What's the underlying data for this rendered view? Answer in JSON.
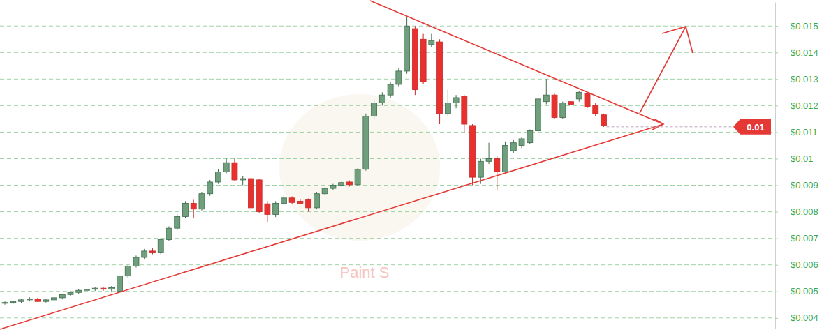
{
  "chart_data": {
    "type": "candlestick",
    "x": [
      1,
      2,
      3,
      4,
      5,
      6,
      7,
      8,
      9,
      10,
      11,
      12,
      13,
      14,
      15,
      16,
      17,
      18,
      19,
      20,
      21,
      22,
      23,
      24,
      25,
      26,
      27,
      28,
      29,
      30,
      31,
      32,
      33,
      34,
      35,
      36,
      37,
      38,
      39,
      40,
      41,
      42,
      43,
      44,
      45,
      46,
      47,
      48,
      49,
      50,
      51,
      52,
      53,
      54,
      55,
      56,
      57,
      58,
      59,
      60,
      61,
      62,
      63,
      64,
      65,
      66,
      67,
      68,
      69,
      70,
      71,
      72,
      73,
      74
    ],
    "open": [
      0.00455,
      0.00458,
      0.00462,
      0.00468,
      0.00472,
      0.00462,
      0.00468,
      0.00476,
      0.00488,
      0.00496,
      0.00504,
      0.00508,
      0.00512,
      0.00508,
      0.005,
      0.00558,
      0.00595,
      0.00628,
      0.00652,
      0.00645,
      0.00695,
      0.00738,
      0.00782,
      0.00832,
      0.0081,
      0.00868,
      0.00912,
      0.0095,
      0.00985,
      0.0092,
      0.00925,
      0.0092,
      0.0083,
      0.0079,
      0.00832,
      0.00852,
      0.0084,
      0.00845,
      0.00815,
      0.00868,
      0.00888,
      0.009,
      0.00912,
      0.00902,
      0.0096,
      0.0116,
      0.0121,
      0.0124,
      0.0128,
      0.0133,
      0.0149,
      0.0145,
      0.0143,
      0.0144,
      0.0117,
      0.0121,
      0.01235,
      0.01125,
      0.0093,
      0.0099,
      0.01,
      0.0095,
      0.0103,
      0.0105,
      0.0106,
      0.01105,
      0.01215,
      0.0124,
      0.01155,
      0.01215,
      0.01225,
      0.01245,
      0.012,
      0.01165
    ],
    "high": [
      0.00462,
      0.00465,
      0.0047,
      0.00478,
      0.00476,
      0.00472,
      0.0048,
      0.0049,
      0.005,
      0.00508,
      0.00512,
      0.00516,
      0.00518,
      0.0052,
      0.0056,
      0.006,
      0.00635,
      0.0066,
      0.00662,
      0.007,
      0.00745,
      0.0079,
      0.0084,
      0.00845,
      0.00875,
      0.0092,
      0.0096,
      0.01,
      0.01,
      0.00935,
      0.0093,
      0.00925,
      0.0084,
      0.0084,
      0.00862,
      0.00858,
      0.00848,
      0.0085,
      0.00875,
      0.00892,
      0.00905,
      0.00915,
      0.00918,
      0.00965,
      0.0117,
      0.0122,
      0.0125,
      0.0129,
      0.0134,
      0.01535,
      0.015,
      0.0147,
      0.0147,
      0.0145,
      0.0126,
      0.0124,
      0.0124,
      0.0113,
      0.01,
      0.0106,
      0.0101,
      0.01065,
      0.0107,
      0.0108,
      0.0111,
      0.0123,
      0.013,
      0.01245,
      0.01215,
      0.01225,
      0.01255,
      0.0125,
      0.0121,
      0.0117
    ],
    "low": [
      0.0045,
      0.00452,
      0.00456,
      0.00462,
      0.0046,
      0.00458,
      0.00464,
      0.0047,
      0.00482,
      0.0049,
      0.00498,
      0.00502,
      0.00502,
      0.005,
      0.00498,
      0.00552,
      0.0059,
      0.0062,
      0.0064,
      0.0064,
      0.0069,
      0.0073,
      0.00775,
      0.00775,
      0.00805,
      0.0086,
      0.00905,
      0.00945,
      0.00915,
      0.009,
      0.00805,
      0.00795,
      0.0076,
      0.0078,
      0.00825,
      0.0083,
      0.00828,
      0.008,
      0.0081,
      0.00862,
      0.00882,
      0.00895,
      0.00895,
      0.00898,
      0.00955,
      0.0115,
      0.012,
      0.0123,
      0.0127,
      0.0132,
      0.0124,
      0.0128,
      0.0142,
      0.0113,
      0.0116,
      0.0119,
      0.011,
      0.009,
      0.00905,
      0.0098,
      0.0088,
      0.00945,
      0.0102,
      0.0104,
      0.01055,
      0.011,
      0.01205,
      0.0115,
      0.0115,
      0.01195,
      0.01215,
      0.0119,
      0.0116,
      0.0112
    ],
    "close": [
      0.00458,
      0.00462,
      0.00468,
      0.00472,
      0.00462,
      0.00468,
      0.00476,
      0.00488,
      0.00496,
      0.00504,
      0.00508,
      0.00512,
      0.00508,
      0.00514,
      0.00558,
      0.00595,
      0.00628,
      0.00652,
      0.00645,
      0.00695,
      0.00738,
      0.00782,
      0.00832,
      0.0081,
      0.00868,
      0.00912,
      0.0095,
      0.00985,
      0.0092,
      0.00925,
      0.00815,
      0.008,
      0.0079,
      0.00832,
      0.00852,
      0.00835,
      0.00832,
      0.00815,
      0.00868,
      0.00888,
      0.009,
      0.0091,
      0.00902,
      0.0096,
      0.0116,
      0.0121,
      0.0124,
      0.0128,
      0.0133,
      0.015,
      0.0126,
      0.0129,
      0.01445,
      0.0117,
      0.0121,
      0.0123,
      0.0113,
      0.0093,
      0.0099,
      0.01,
      0.0095,
      0.0105,
      0.0106,
      0.01075,
      0.01105,
      0.01225,
      0.0124,
      0.01155,
      0.0121,
      0.01205,
      0.0125,
      0.01195,
      0.0117,
      0.01125
    ],
    "xlim": [
      0.4,
      94.9
    ],
    "ylim": [
      0.0036,
      0.0159
    ],
    "yticks": [
      {
        "value": 0.004,
        "label": "$0.004"
      },
      {
        "value": 0.005,
        "label": "$0.005"
      },
      {
        "value": 0.006,
        "label": "$0.006"
      },
      {
        "value": 0.007,
        "label": "$0.007"
      },
      {
        "value": 0.008,
        "label": "$0.008"
      },
      {
        "value": 0.009,
        "label": "$0.009"
      },
      {
        "value": 0.01,
        "label": "$0.01"
      },
      {
        "value": 0.011,
        "label": "$0.011"
      },
      {
        "value": 0.012,
        "label": "$0.012"
      },
      {
        "value": 0.013,
        "label": "$0.013"
      },
      {
        "value": 0.014,
        "label": "$0.014"
      },
      {
        "value": 0.015,
        "label": "$0.015"
      }
    ],
    "grid": true,
    "tick_labels": "y",
    "price_label": {
      "value": 0.0112,
      "label": "0.01"
    },
    "annotations": [
      "Paint S"
    ]
  }
}
